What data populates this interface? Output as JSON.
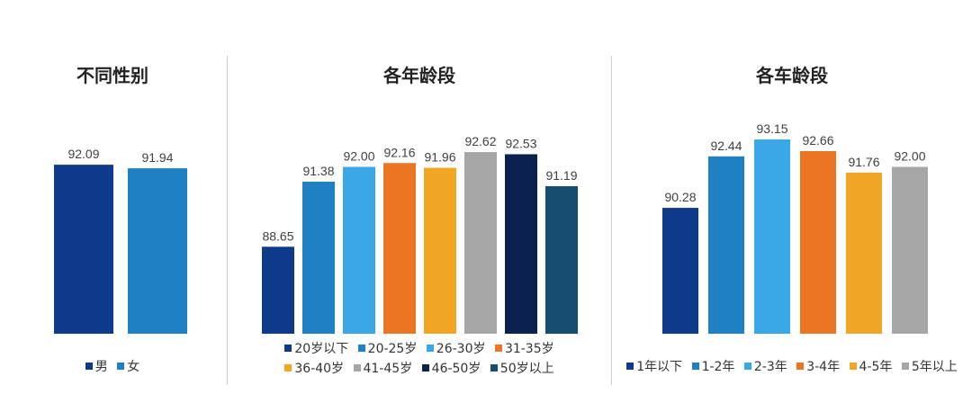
{
  "chart_data": [
    {
      "type": "bar",
      "title": "不同性别",
      "categories": [
        "男",
        "女"
      ],
      "values": [
        92.09,
        91.94
      ],
      "ylim": [
        85,
        93.5
      ],
      "colors": [
        "#0d3a8a",
        "#1f80c3"
      ],
      "value_labels": [
        "92.09",
        "91.94"
      ],
      "legend_position": "bottom"
    },
    {
      "type": "bar",
      "title": "各年龄段",
      "categories": [
        "20岁以下",
        "20-25岁",
        "26-30岁",
        "31-35岁",
        "36-40岁",
        "41-45岁",
        "46-50岁",
        "50岁以上"
      ],
      "values": [
        88.65,
        91.38,
        92.0,
        92.16,
        91.96,
        92.62,
        92.53,
        91.19
      ],
      "ylim": [
        85,
        93.5
      ],
      "colors": [
        "#0d3a8a",
        "#1f80c3",
        "#3aa8e6",
        "#eb7520",
        "#f2a625",
        "#a6a6a6",
        "#0b2250",
        "#164d70"
      ],
      "value_labels": [
        "88.65",
        "91.38",
        "92.00",
        "92.16",
        "91.96",
        "92.62",
        "92.53",
        "91.19"
      ],
      "legend_position": "bottom"
    },
    {
      "type": "bar",
      "title": "各车龄段",
      "categories": [
        "1年以下",
        "1-2年",
        "2-3年",
        "3-4年",
        "4-5年",
        "5年以上"
      ],
      "values": [
        90.28,
        92.44,
        93.15,
        92.66,
        91.76,
        92.0
      ],
      "ylim": [
        85,
        93.5
      ],
      "colors": [
        "#0d3a8a",
        "#1f80c3",
        "#3aa8e6",
        "#eb7520",
        "#f2a625",
        "#a6a6a6"
      ],
      "value_labels": [
        "90.28",
        "92.44",
        "93.15",
        "92.66",
        "91.76",
        "92.00"
      ],
      "legend_position": "bottom"
    }
  ]
}
